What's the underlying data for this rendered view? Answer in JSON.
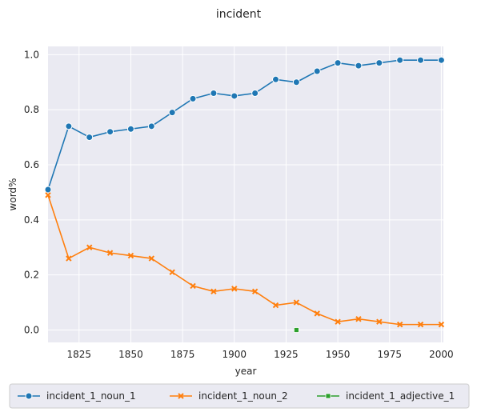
{
  "chart_data": {
    "type": "line",
    "title": "incident",
    "xlabel": "year",
    "ylabel": "word%",
    "xlim": [
      1810,
      2001
    ],
    "ylim": [
      -0.045,
      1.03
    ],
    "xticks": [
      1825,
      1850,
      1875,
      1900,
      1925,
      1950,
      1975,
      2000
    ],
    "yticks": [
      0.0,
      0.2,
      0.4,
      0.6,
      0.8,
      1.0
    ],
    "xtick_labels": [
      "1825",
      "1850",
      "1875",
      "1900",
      "1925",
      "1950",
      "1975",
      "2000"
    ],
    "ytick_labels": [
      "0.0",
      "0.2",
      "0.4",
      "0.6",
      "0.8",
      "1.0"
    ],
    "grid": true,
    "legend_position": "bottom",
    "series": [
      {
        "name": "incident_1_noun_1",
        "color": "#1f77b4",
        "marker": "circle",
        "x": [
          1810,
          1820,
          1830,
          1840,
          1850,
          1860,
          1870,
          1880,
          1890,
          1900,
          1910,
          1920,
          1930,
          1940,
          1950,
          1960,
          1970,
          1980,
          1990,
          2000
        ],
        "y": [
          0.51,
          0.74,
          0.7,
          0.72,
          0.73,
          0.74,
          0.79,
          0.84,
          0.86,
          0.85,
          0.86,
          0.91,
          0.9,
          0.94,
          0.97,
          0.96,
          0.97,
          0.98,
          0.98,
          0.98
        ]
      },
      {
        "name": "incident_1_noun_2",
        "color": "#ff7f0e",
        "marker": "x",
        "x": [
          1810,
          1820,
          1830,
          1840,
          1850,
          1860,
          1870,
          1880,
          1890,
          1900,
          1910,
          1920,
          1930,
          1940,
          1950,
          1960,
          1970,
          1980,
          1990,
          2000
        ],
        "y": [
          0.49,
          0.26,
          0.3,
          0.28,
          0.27,
          0.26,
          0.21,
          0.16,
          0.14,
          0.15,
          0.14,
          0.09,
          0.1,
          0.06,
          0.03,
          0.04,
          0.03,
          0.02,
          0.02,
          0.02
        ]
      },
      {
        "name": "incident_1_adjective_1",
        "color": "#2ca02c",
        "marker": "square",
        "x": [
          1930
        ],
        "y": [
          0.0
        ]
      }
    ]
  }
}
